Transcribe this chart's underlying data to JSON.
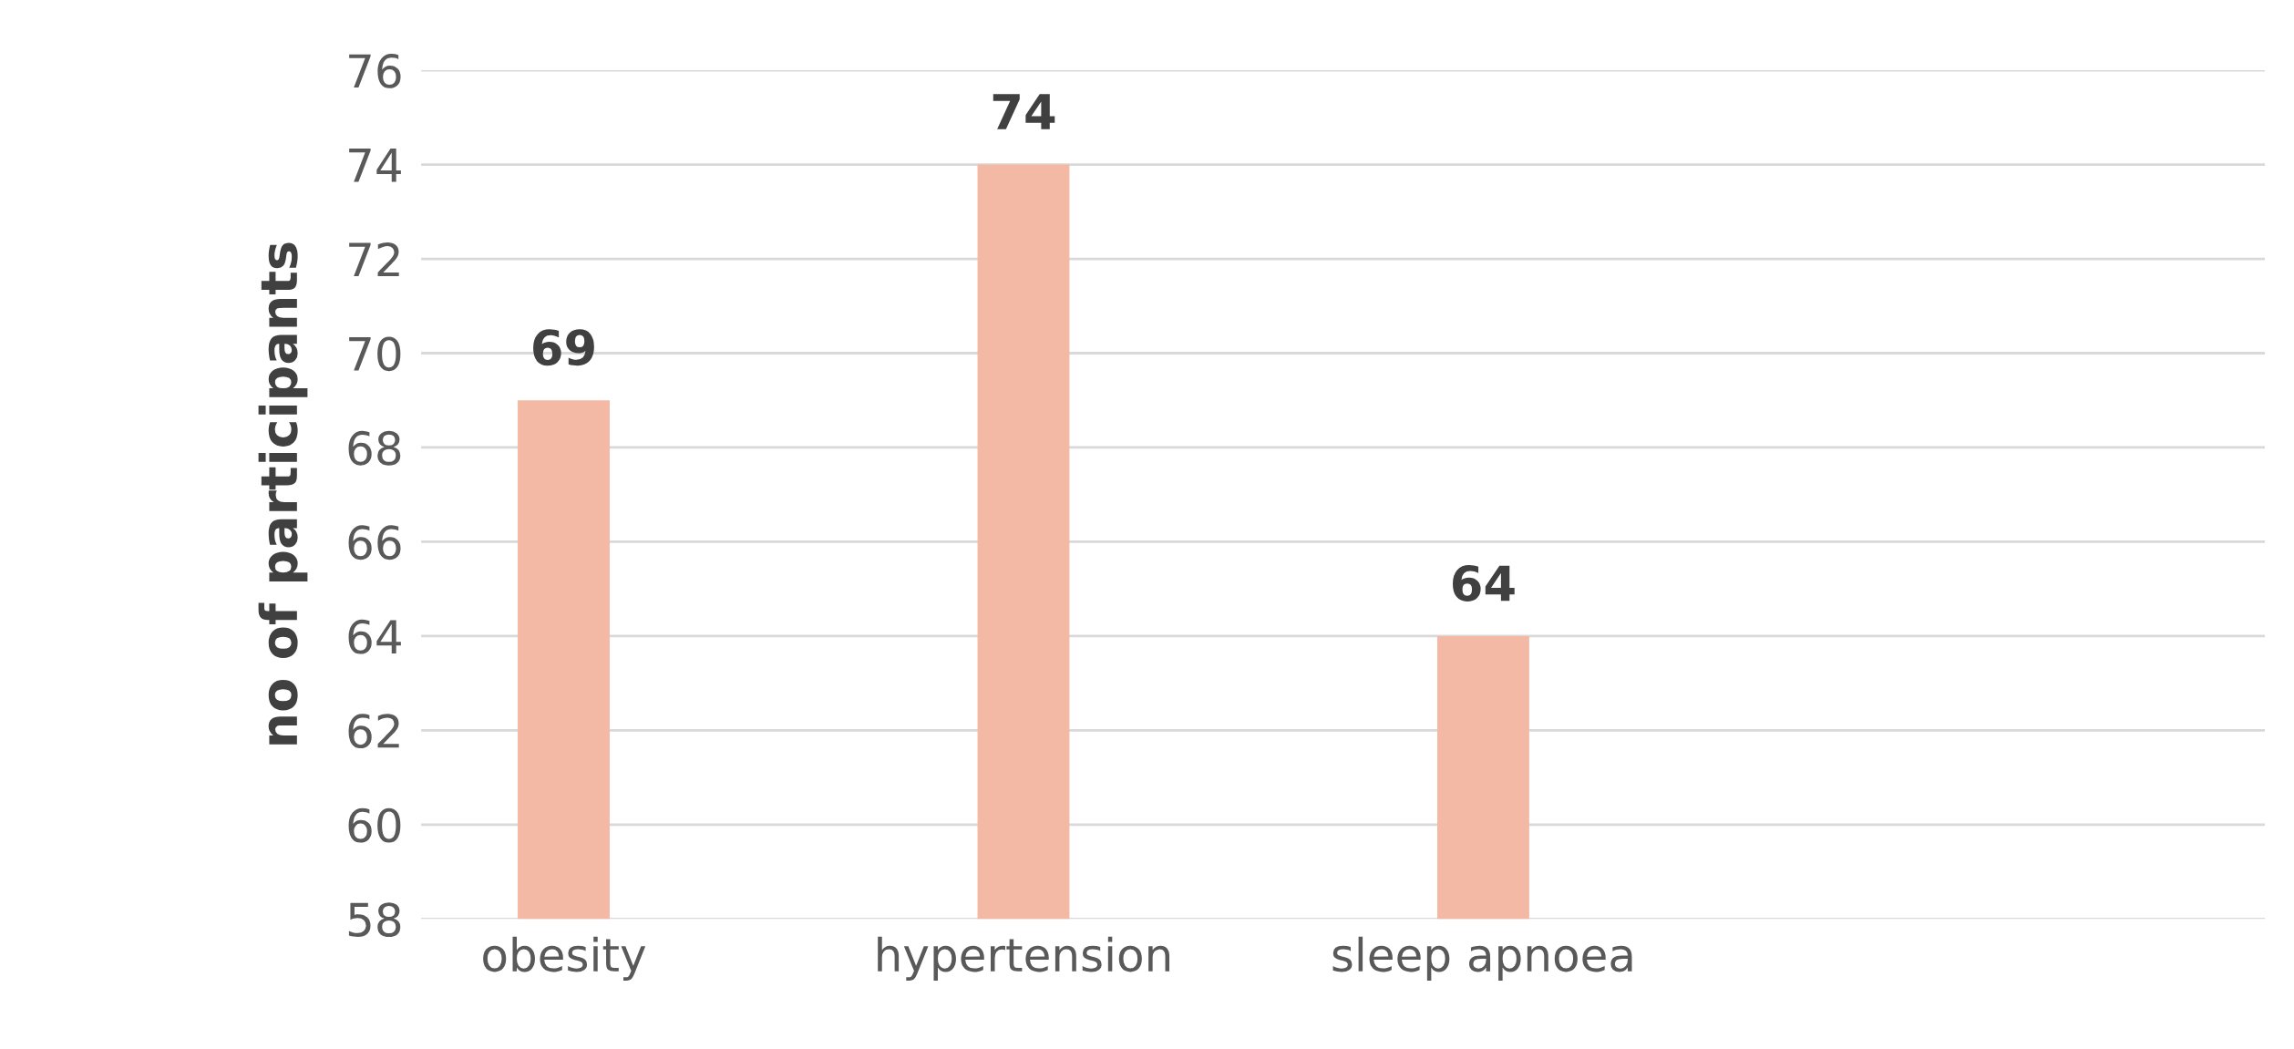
{
  "chart_data": {
    "type": "bar",
    "ylabel": "no of participants",
    "categories": [
      "obesity",
      "hypertension",
      "sleep apnoea",
      null
    ],
    "values": [
      69,
      74,
      64,
      null
    ],
    "color": "#f4b9a4",
    "ylim": [
      58,
      76
    ],
    "yticks": [
      58,
      60,
      62,
      64,
      66,
      68,
      70,
      72,
      74,
      76
    ],
    "grid": "y",
    "data_labels": true
  }
}
